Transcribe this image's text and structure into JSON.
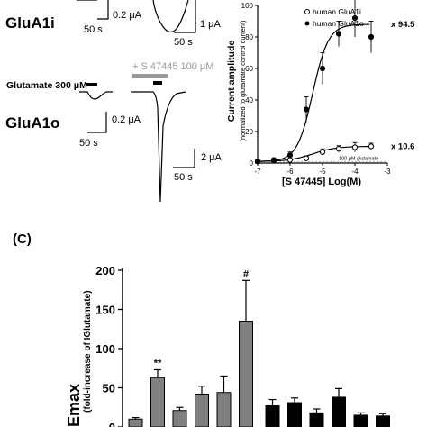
{
  "traces": {
    "glua1i_label": "GluA1i",
    "glua1o_label": "GluA1o",
    "scale_i_small_amp": "0.2 μA",
    "scale_i_small_time": "50 s",
    "scale_i_large_amp": "1 μA",
    "scale_i_large_time": "50 s",
    "glutamate_label": "Glutamate 300 μM",
    "s47445_label": "+ S 47445 100 μM",
    "scale_o_small_amp": "0.2 μA",
    "scale_o_small_time": "50 s",
    "scale_o_large_amp": "2 μA",
    "scale_o_large_time": "50 s"
  },
  "colors": {
    "gray_bar": "#808080",
    "black_bar": "#000000",
    "s47445_bar": "#999999"
  },
  "chart_data": [
    {
      "type": "line",
      "xlabel": "[S 47445]  Log(M)",
      "ylabel": "Current amplitude",
      "ylabel2": "(normalized to glutamate control current)",
      "xlim": [
        -7,
        -3
      ],
      "ylim": [
        0,
        100
      ],
      "xticks": [
        -7,
        -6,
        -5,
        -4,
        -3
      ],
      "yticks": [
        0,
        20,
        40,
        60,
        80,
        100
      ],
      "legend_position": "top-left",
      "annotations": {
        "emax_o": "x 94.5",
        "emax_i": "x 10.6",
        "baseline": "100 μM glutamate"
      },
      "series": [
        {
          "name": "human GluA1i",
          "marker": "open-circle",
          "x": [
            -7,
            -6.5,
            -6,
            -5.5,
            -5,
            -4.5,
            -4,
            -3.5
          ],
          "y": [
            1,
            1.5,
            2,
            3,
            7,
            9,
            10,
            10.6
          ],
          "err": [
            0.5,
            0.5,
            1,
            1.5,
            2,
            2,
            3,
            2
          ]
        },
        {
          "name": "human GluA1o",
          "marker": "filled-circle",
          "x": [
            -7,
            -6.5,
            -6,
            -5.5,
            -5,
            -4.5,
            -4,
            -3.5
          ],
          "y": [
            1,
            2,
            5,
            34,
            60,
            82,
            92,
            80
          ],
          "err": [
            0.5,
            1,
            2,
            8,
            10,
            8,
            12,
            10
          ]
        }
      ]
    },
    {
      "type": "bar",
      "panel_label": "(C)",
      "ylabel_main": "Emax",
      "ylabel_sub": "(fold-increase of IGlutamate)",
      "ylim": [
        0,
        200
      ],
      "yticks": [
        0,
        50,
        100,
        150,
        200
      ],
      "groups": [
        {
          "color": "gray",
          "values": [
            10,
            63,
            21,
            42,
            44,
            135
          ],
          "errors": [
            2,
            10,
            4,
            10,
            21,
            52
          ],
          "labels": [
            "",
            "**",
            "",
            "",
            "",
            "#"
          ]
        },
        {
          "color": "black",
          "values": [
            27,
            31,
            18,
            38,
            15,
            14
          ],
          "errors": [
            8,
            6,
            5,
            11,
            3,
            3
          ]
        }
      ]
    }
  ]
}
